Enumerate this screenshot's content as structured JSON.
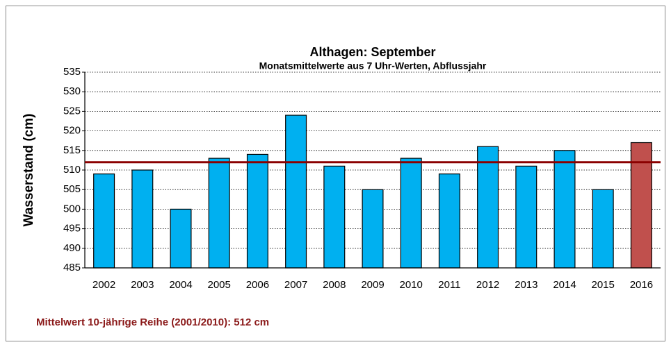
{
  "chart_data": {
    "type": "bar",
    "title": "Althagen: September",
    "subtitle": "Monatsmittelwerte aus 7 Uhr-Werten, Abflussjahr",
    "y_label": "Wasserstand (cm)",
    "categories": [
      "2002",
      "2003",
      "2004",
      "2005",
      "2006",
      "2007",
      "2008",
      "2009",
      "2010",
      "2011",
      "2012",
      "2013",
      "2014",
      "2015",
      "2016"
    ],
    "values": [
      509,
      510,
      500,
      513,
      514,
      524,
      511,
      505,
      513,
      509,
      516,
      511,
      515,
      505,
      517
    ],
    "colors": [
      "#00b0f0",
      "#00b0f0",
      "#00b0f0",
      "#00b0f0",
      "#00b0f0",
      "#00b0f0",
      "#00b0f0",
      "#00b0f0",
      "#00b0f0",
      "#00b0f0",
      "#00b0f0",
      "#00b0f0",
      "#00b0f0",
      "#00b0f0",
      "#c0504d"
    ],
    "ylim": [
      485,
      535
    ],
    "yticks": [
      485,
      490,
      495,
      500,
      505,
      510,
      515,
      520,
      525,
      530,
      535
    ],
    "grid": true,
    "reference_line": {
      "value": 512,
      "color": "#8b0000"
    },
    "note": "Mittelwert 10-jährige Reihe (2001/2010): 512 cm"
  }
}
